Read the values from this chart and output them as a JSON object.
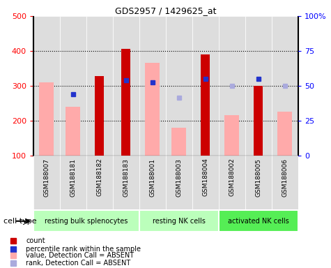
{
  "title": "GDS2957 / 1429625_at",
  "samples": [
    "GSM188007",
    "GSM188181",
    "GSM188182",
    "GSM188183",
    "GSM188001",
    "GSM188003",
    "GSM188004",
    "GSM188002",
    "GSM188005",
    "GSM188006"
  ],
  "groups": [
    {
      "label": "resting bulk splenocytes",
      "start": 0,
      "end": 4,
      "color": "#bbffbb"
    },
    {
      "label": "resting NK cells",
      "start": 4,
      "end": 7,
      "color": "#bbffbb"
    },
    {
      "label": "activated NK cells",
      "start": 7,
      "end": 10,
      "color": "#55ee55"
    }
  ],
  "red_bars": {
    "GSM188182": 328,
    "GSM188183": 405,
    "GSM188004": 390,
    "GSM188005": 300
  },
  "pink_bars": {
    "GSM188007": 310,
    "GSM188181": 240,
    "GSM188001": 365,
    "GSM188003": 180,
    "GSM188002": 215,
    "GSM188006": 225
  },
  "blue_squares": {
    "GSM188181": 275,
    "GSM188183": 315,
    "GSM188001": 310,
    "GSM188004": 320,
    "GSM188005": 320
  },
  "light_blue_squares": {
    "GSM188003": 265,
    "GSM188002": 300,
    "GSM188006": 300
  },
  "ylim_left": [
    100,
    500
  ],
  "ylim_right": [
    0,
    100
  ],
  "yticks_left": [
    100,
    200,
    300,
    400,
    500
  ],
  "yticks_right": [
    0,
    25,
    50,
    75,
    100
  ],
  "yticklabels_right": [
    "0",
    "25",
    "50",
    "75",
    "100%"
  ],
  "red_color": "#cc0000",
  "pink_color": "#ffaaaa",
  "blue_color": "#2233cc",
  "light_blue_color": "#aaaadd",
  "plot_bg": "#dddddd",
  "legend_items": [
    {
      "label": "count",
      "color": "#cc0000"
    },
    {
      "label": "percentile rank within the sample",
      "color": "#2233cc"
    },
    {
      "label": "value, Detection Call = ABSENT",
      "color": "#ffaaaa"
    },
    {
      "label": "rank, Detection Call = ABSENT",
      "color": "#aaaadd"
    }
  ]
}
